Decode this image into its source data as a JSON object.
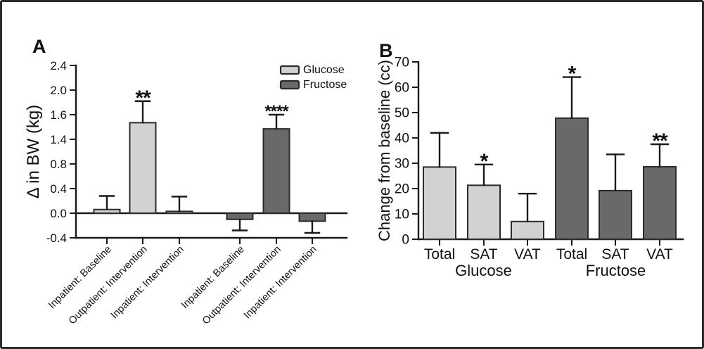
{
  "figure": {
    "panels": [
      {
        "label": "A"
      },
      {
        "label": "B"
      }
    ]
  },
  "colors": {
    "glucose_fill": "#d2d2d2",
    "fructose_fill": "#696969",
    "bar_border": "#2b2b2b",
    "axis": "#1a1a1a",
    "frame": "#2a2a2a",
    "background": "#ffffff"
  },
  "chart_data": [
    {
      "type": "bar",
      "panel": "A",
      "title": "",
      "xlabel": "",
      "ylabel": "Δ in BW (kg)",
      "ylim": [
        -0.4,
        2.4
      ],
      "ytick_labels": [
        "2.4",
        "2.0",
        "1.6",
        "1.4",
        "0.8",
        "0.4",
        "0.0",
        "-0.4"
      ],
      "zero_line": true,
      "grid": false,
      "legend": {
        "position": "top-right",
        "entries": [
          {
            "label": "Glucose",
            "color_key": "glucose_fill"
          },
          {
            "label": "Fructose",
            "color_key": "fructose_fill"
          }
        ]
      },
      "bars": [
        {
          "label": "Inpatient: Baseline",
          "series": "Glucose",
          "value": 0.06,
          "err": 0.28,
          "sig": ""
        },
        {
          "label": "Outpatient: Intervention",
          "series": "Glucose",
          "value": 1.47,
          "err": 1.82,
          "sig": "**"
        },
        {
          "label": "Inpatient: Intervention",
          "series": "Glucose",
          "value": 0.03,
          "err": 0.27,
          "sig": ""
        },
        {
          "label": "Inpatient: Baseline",
          "series": "Fructose",
          "value": -0.1,
          "err": -0.28,
          "sig": ""
        },
        {
          "label": "Outpatient: Intervention",
          "series": "Fructose",
          "value": 1.37,
          "err": 1.6,
          "sig": "****"
        },
        {
          "label": "Inpatient: Intervention",
          "series": "Fructose",
          "value": -0.13,
          "err": -0.32,
          "sig": ""
        }
      ]
    },
    {
      "type": "bar",
      "panel": "B",
      "title": "",
      "xlabel": "",
      "ylabel": "Change from baseline (cc)",
      "ylim": [
        0,
        70
      ],
      "ytick_labels": [
        "70",
        "60",
        "50",
        "40",
        "30",
        "20",
        "10",
        "0"
      ],
      "zero_line": false,
      "grid": false,
      "bars": [
        {
          "label": "Total",
          "series": "Glucose",
          "value": 28.5,
          "err": 42,
          "sig": ""
        },
        {
          "label": "SAT",
          "series": "Glucose",
          "value": 21.3,
          "err": 29.5,
          "sig": "*"
        },
        {
          "label": "VAT",
          "series": "Glucose",
          "value": 7,
          "err": 18,
          "sig": ""
        },
        {
          "label": "Total",
          "series": "Fructose",
          "value": 47.8,
          "err": 64,
          "sig": "*"
        },
        {
          "label": "SAT",
          "series": "Fructose",
          "value": 19.2,
          "err": 33.5,
          "sig": ""
        },
        {
          "label": "VAT",
          "series": "Fructose",
          "value": 28.6,
          "err": 37.5,
          "sig": "**"
        }
      ],
      "group_labels": [
        {
          "text": "Glucose",
          "from": 0,
          "to": 2
        },
        {
          "text": "Fructose",
          "from": 3,
          "to": 5
        }
      ]
    }
  ]
}
